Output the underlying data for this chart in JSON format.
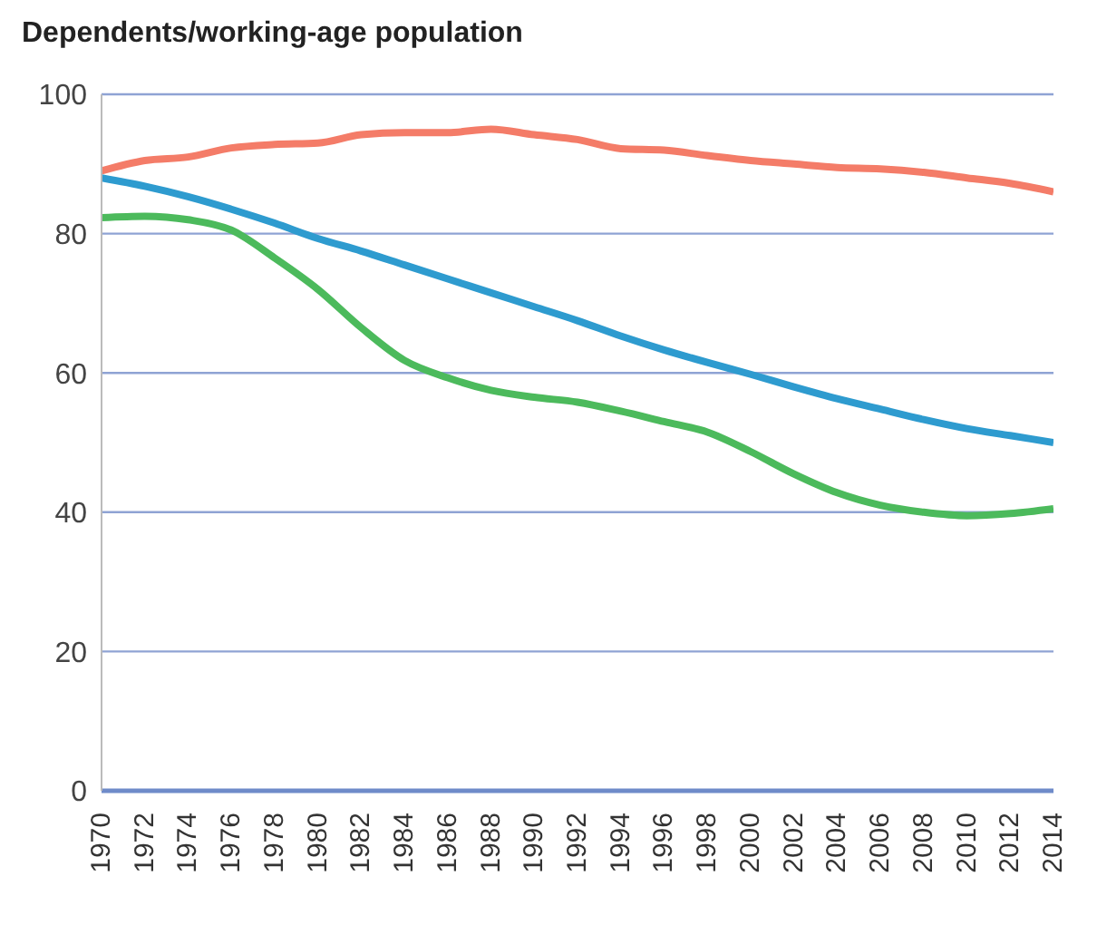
{
  "chart_data": {
    "type": "line",
    "title": "Dependents/working-age population",
    "x": [
      1970,
      1972,
      1974,
      1976,
      1978,
      1980,
      1982,
      1984,
      1986,
      1988,
      1990,
      1992,
      1994,
      1996,
      1998,
      2000,
      2002,
      2004,
      2006,
      2008,
      2010,
      2012,
      2014
    ],
    "series": [
      {
        "color": "#f47c68",
        "values": [
          89,
          90.5,
          91,
          92.3,
          92.8,
          93,
          94.2,
          94.5,
          94.5,
          95,
          94.2,
          93.5,
          92.2,
          92,
          91.2,
          90.5,
          90,
          89.5,
          89.3,
          88.8,
          88,
          87.2,
          86
        ]
      },
      {
        "color": "#2e9bcf",
        "values": [
          88,
          86.8,
          85.3,
          83.5,
          81.5,
          79.3,
          77.5,
          75.5,
          73.5,
          71.5,
          69.5,
          67.5,
          65.3,
          63.3,
          61.5,
          59.8,
          58,
          56.3,
          54.8,
          53.3,
          52,
          51,
          50
        ]
      },
      {
        "color": "#4cba5c",
        "values": [
          82.3,
          82.5,
          82,
          80.5,
          76.5,
          72,
          66.5,
          61.8,
          59.3,
          57.5,
          56.5,
          55.8,
          54.5,
          53,
          51.5,
          48.7,
          45.5,
          42.8,
          41,
          40,
          39.5,
          39.8,
          40.5
        ]
      }
    ],
    "xlim": [
      1970,
      2014
    ],
    "xticks": [
      1970,
      1972,
      1974,
      1976,
      1978,
      1980,
      1982,
      1984,
      1986,
      1988,
      1990,
      1992,
      1994,
      1996,
      1998,
      2000,
      2002,
      2004,
      2006,
      2008,
      2010,
      2012,
      2014
    ],
    "ylim": [
      0,
      100
    ],
    "yticks": [
      0,
      20,
      40,
      60,
      80,
      100
    ],
    "grid": "y",
    "marker": "none",
    "line_style": "solid"
  }
}
